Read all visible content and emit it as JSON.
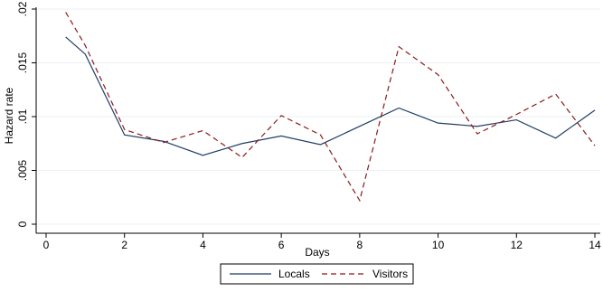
{
  "chart_data": {
    "type": "line",
    "xlabel": "Days",
    "ylabel": "Hazard rate",
    "xlim": [
      0,
      14
    ],
    "ylim": [
      0,
      0.02
    ],
    "xticks": [
      0,
      2,
      4,
      6,
      8,
      10,
      12,
      14
    ],
    "xtick_labels": [
      "0",
      "2",
      "4",
      "6",
      "8",
      "10",
      "12",
      "14"
    ],
    "yticks": [
      0,
      0.005,
      0.01,
      0.015,
      0.02
    ],
    "ytick_labels": [
      "0",
      ".005",
      ".01",
      ".015",
      ".02"
    ],
    "grid": "horizontal",
    "legend_position": "bottom-center",
    "series": [
      {
        "name": "Locals",
        "color": "#1f3d66",
        "dash": "solid",
        "x": [
          0.5,
          1,
          2,
          3,
          4,
          5,
          6,
          7,
          8,
          9,
          10,
          11,
          12,
          13,
          14
        ],
        "y": [
          0.0174,
          0.0158,
          0.0083,
          0.0077,
          0.0064,
          0.0075,
          0.0082,
          0.0074,
          0.0091,
          0.0108,
          0.0094,
          0.0091,
          0.0097,
          0.008,
          0.0106
        ]
      },
      {
        "name": "Visitors",
        "color": "#8b1a1a",
        "dash": "dashed",
        "x": [
          0.5,
          1,
          2,
          3,
          4,
          5,
          6,
          7,
          8,
          9,
          10,
          11,
          12,
          13,
          14
        ],
        "y": [
          0.0197,
          0.0166,
          0.0088,
          0.0076,
          0.0087,
          0.0062,
          0.0101,
          0.0083,
          0.0022,
          0.0165,
          0.0139,
          0.0084,
          0.0102,
          0.0121,
          0.0073
        ]
      }
    ]
  }
}
